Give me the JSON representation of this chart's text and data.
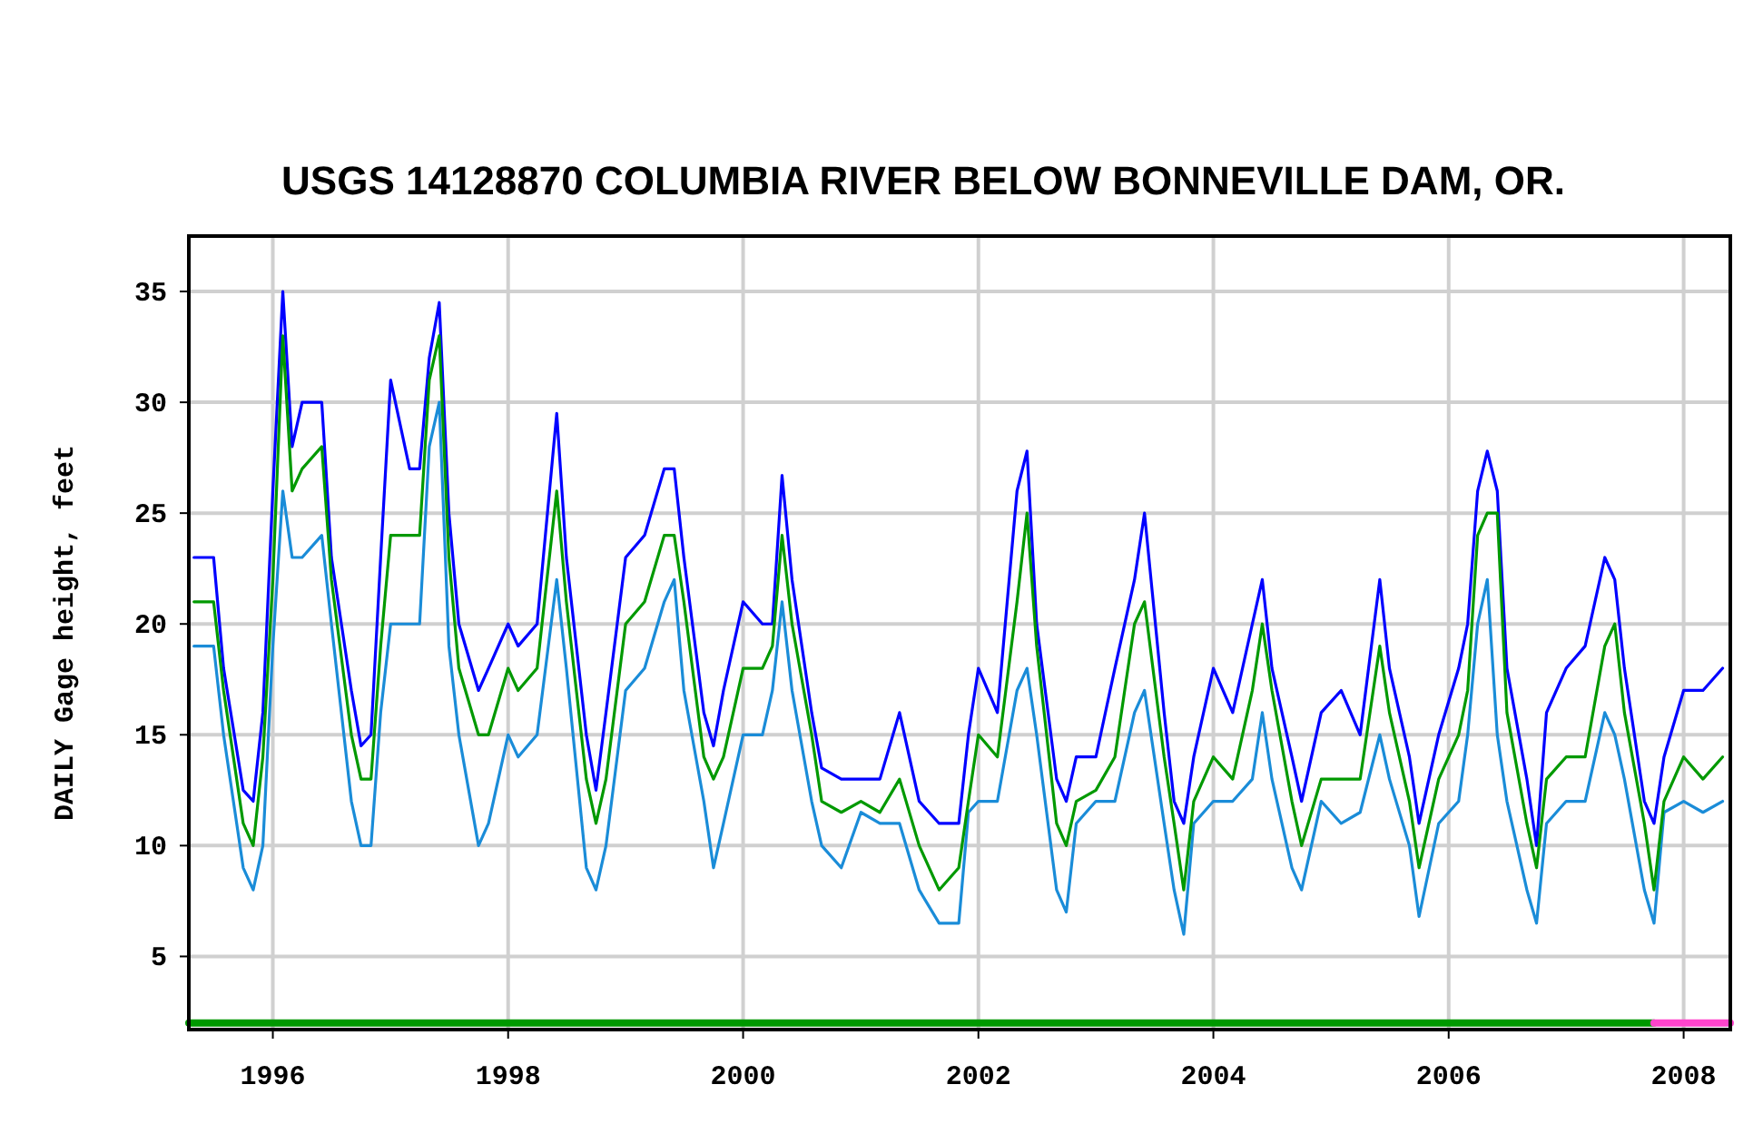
{
  "chart_data": {
    "type": "line",
    "title": "USGS 14128870 COLUMBIA RIVER BELOW BONNEVILLE DAM, OR.",
    "ylabel": "DAILY Gage height, feet",
    "x": [
      "1995-05",
      "1995-07",
      "1995-08",
      "1995-10",
      "1995-11",
      "1995-12",
      "1996-01",
      "1996-02",
      "1996-03",
      "1996-04",
      "1996-06",
      "1996-07",
      "1996-09",
      "1996-10",
      "1996-11",
      "1996-12",
      "1997-01",
      "1997-03",
      "1997-04",
      "1997-05",
      "1997-06",
      "1997-07",
      "1997-08",
      "1997-10",
      "1997-11",
      "1998-01",
      "1998-02",
      "1998-04",
      "1998-06",
      "1998-07",
      "1998-09",
      "1998-10",
      "1998-11",
      "1999-01",
      "1999-03",
      "1999-05",
      "1999-06",
      "1999-07",
      "1999-09",
      "1999-10",
      "1999-11",
      "2000-01",
      "2000-03",
      "2000-04",
      "2000-05",
      "2000-06",
      "2000-08",
      "2000-09",
      "2000-11",
      "2001-01",
      "2001-03",
      "2001-05",
      "2001-07",
      "2001-09",
      "2001-11",
      "2001-12",
      "2002-01",
      "2002-03",
      "2002-05",
      "2002-06",
      "2002-07",
      "2002-09",
      "2002-10",
      "2002-11",
      "2003-01",
      "2003-03",
      "2003-05",
      "2003-06",
      "2003-08",
      "2003-09",
      "2003-10",
      "2003-11",
      "2004-01",
      "2004-03",
      "2004-05",
      "2004-06",
      "2004-07",
      "2004-09",
      "2004-10",
      "2004-12",
      "2005-02",
      "2005-04",
      "2005-06",
      "2005-07",
      "2005-09",
      "2005-10",
      "2005-12",
      "2006-02",
      "2006-03",
      "2006-04",
      "2006-05",
      "2006-06",
      "2006-07",
      "2006-09",
      "2006-10",
      "2006-11",
      "2007-01",
      "2007-03",
      "2007-05",
      "2007-06",
      "2007-07",
      "2007-09",
      "2007-10",
      "2007-11",
      "2008-01",
      "2008-03",
      "2008-05"
    ],
    "series": [
      {
        "color": "#0000ff",
        "values": [
          23,
          23,
          18,
          12.5,
          12,
          16,
          26,
          35,
          28,
          30,
          30,
          23,
          17,
          14.5,
          15,
          23,
          31,
          27,
          27,
          32,
          34.5,
          25,
          20,
          17,
          18,
          20,
          19,
          20,
          29.5,
          23,
          15,
          12.5,
          16,
          23,
          24,
          27,
          27,
          23,
          16,
          14.5,
          17,
          21,
          20,
          20,
          26.7,
          22,
          16,
          13.5,
          13,
          13,
          13,
          16,
          12,
          11,
          11,
          15,
          18,
          16,
          26,
          27.8,
          20,
          13,
          12,
          14,
          14,
          18,
          22,
          25,
          16,
          12,
          11,
          14,
          18,
          16,
          20,
          22,
          18,
          14,
          12,
          16,
          17,
          15,
          22,
          18,
          14,
          11,
          15,
          18,
          20,
          26,
          27.8,
          26,
          18,
          13,
          10,
          16,
          18,
          19,
          23,
          22,
          18,
          12,
          11,
          14,
          17,
          17,
          18
        ]
      },
      {
        "color": "#1a8cd8",
        "values": [
          19,
          19,
          15,
          9,
          8,
          10,
          19,
          26,
          23,
          23,
          24,
          20,
          12,
          10,
          10,
          16,
          20,
          20,
          20,
          28,
          30,
          19,
          15,
          10,
          11,
          15,
          14,
          15,
          22,
          18,
          9,
          8,
          10,
          17,
          18,
          21,
          22,
          17,
          12,
          9,
          11,
          15,
          15,
          17,
          21,
          17,
          12,
          10,
          9,
          11.5,
          11,
          11,
          8,
          6.5,
          6.5,
          11.5,
          12,
          12,
          17,
          18,
          15,
          8,
          7,
          11,
          12,
          12,
          16,
          17,
          11,
          8,
          6,
          11,
          12,
          12,
          13,
          16,
          13,
          9,
          8,
          12,
          11,
          11.5,
          15,
          13,
          10,
          6.8,
          11,
          12,
          15,
          20,
          22,
          15,
          12,
          8,
          6.5,
          11,
          12,
          12,
          16,
          15,
          13,
          8,
          6.5,
          11.5,
          12,
          11.5,
          12
        ]
      },
      {
        "color": "#009900",
        "values": [
          21,
          21,
          17,
          11,
          10,
          14,
          22,
          33,
          26,
          27,
          28,
          22,
          15,
          13,
          13,
          19,
          24,
          24,
          24,
          31,
          33,
          23,
          18,
          15,
          15,
          18,
          17,
          18,
          26,
          21,
          13,
          11,
          13,
          20,
          21,
          24,
          24,
          21,
          14,
          13,
          14,
          18,
          18,
          19,
          24,
          20,
          15,
          12,
          11.5,
          12,
          11.5,
          13,
          10,
          8,
          9,
          12,
          15,
          14,
          21,
          25,
          19,
          11,
          10,
          12,
          12.5,
          14,
          20,
          21,
          14,
          11,
          8,
          12,
          14,
          13,
          17,
          20,
          17,
          12,
          10,
          13,
          13,
          13,
          19,
          16,
          12,
          9,
          13,
          15,
          17,
          24,
          25,
          25,
          16,
          11,
          9,
          13,
          14,
          14,
          19,
          20,
          16,
          11,
          8,
          12,
          14,
          13,
          14
        ]
      },
      {
        "color": "#009900",
        "x": [
          "1995-04-15",
          "2007-10-01"
        ],
        "values": [
          2,
          2
        ]
      },
      {
        "color": "#ff44cc",
        "x": [
          "2007-10-01",
          "2008-05-25"
        ],
        "values": [
          2,
          2
        ]
      }
    ],
    "xlim": [
      "1995-04-15",
      "2008-05-25"
    ],
    "xticks": [
      {
        "value": "1996",
        "label": "1996"
      },
      {
        "value": "1998",
        "label": "1998"
      },
      {
        "value": "2000",
        "label": "2000"
      },
      {
        "value": "2002",
        "label": "2002"
      },
      {
        "value": "2004",
        "label": "2004"
      },
      {
        "value": "2006",
        "label": "2006"
      },
      {
        "value": "2008",
        "label": "2008"
      }
    ],
    "ylim": [
      1.7,
      37.5
    ],
    "yticks": [
      5,
      10,
      15,
      20,
      25,
      30,
      35
    ],
    "grid": true,
    "marker": "none",
    "line_style": "solid"
  }
}
